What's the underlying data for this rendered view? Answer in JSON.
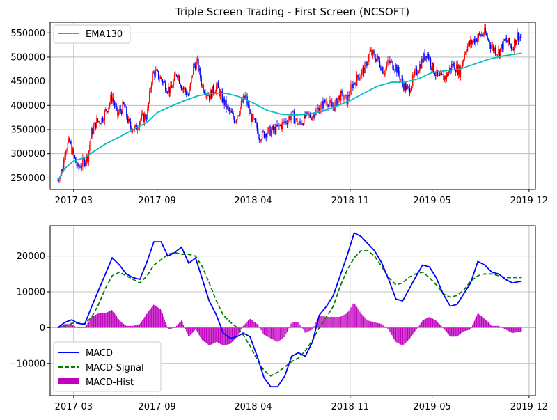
{
  "chart_data": [
    {
      "type": "line",
      "title": "Triple Screen Trading - First Screen (NCSOFT)",
      "xlabel": "",
      "ylabel": "",
      "x_tick_labels": [
        "2017-03",
        "2017-09",
        "2018-04",
        "2018-11",
        "2019-05",
        "2019-12"
      ],
      "y_tick_labels": [
        "250000",
        "300000",
        "350000",
        "400000",
        "450000",
        "500000",
        "550000"
      ],
      "xlim": [
        "2017-01-08",
        "2019-12-15"
      ],
      "ylim": [
        226000,
        572000
      ],
      "grid": true,
      "legend_position": "top-left",
      "candlestick_colors": {
        "up": "#ff0000",
        "down": "#0000ff"
      },
      "series": [
        {
          "name": "EMA130",
          "color": "#00bfbf",
          "points": [
            [
              "2017-01-25",
              245000
            ],
            [
              "2017-02-10",
              270000
            ],
            [
              "2017-03-01",
              285000
            ],
            [
              "2017-03-25",
              292000
            ],
            [
              "2017-04-15",
              305000
            ],
            [
              "2017-05-10",
              320000
            ],
            [
              "2017-06-10",
              335000
            ],
            [
              "2017-07-10",
              350000
            ],
            [
              "2017-08-10",
              365000
            ],
            [
              "2017-09-01",
              385000
            ],
            [
              "2017-10-01",
              398000
            ],
            [
              "2017-11-01",
              410000
            ],
            [
              "2017-12-01",
              420000
            ],
            [
              "2018-01-01",
              425000
            ],
            [
              "2018-02-01",
              425000
            ],
            [
              "2018-03-01",
              418000
            ],
            [
              "2018-04-01",
              405000
            ],
            [
              "2018-05-01",
              390000
            ],
            [
              "2018-06-01",
              382000
            ],
            [
              "2018-07-01",
              380000
            ],
            [
              "2018-08-01",
              382000
            ],
            [
              "2018-09-01",
              388000
            ],
            [
              "2018-10-01",
              398000
            ],
            [
              "2018-11-01",
              410000
            ],
            [
              "2018-12-01",
              425000
            ],
            [
              "2019-01-01",
              440000
            ],
            [
              "2019-02-01",
              448000
            ],
            [
              "2019-03-01",
              448000
            ],
            [
              "2019-04-01",
              455000
            ],
            [
              "2019-05-01",
              468000
            ],
            [
              "2019-06-01",
              472000
            ],
            [
              "2019-07-01",
              475000
            ],
            [
              "2019-08-01",
              485000
            ],
            [
              "2019-09-01",
              495000
            ],
            [
              "2019-10-01",
              502000
            ],
            [
              "2019-11-15",
              508000
            ]
          ]
        }
      ],
      "price_path": [
        [
          "2017-01-25",
          245000
        ],
        [
          "2017-02-05",
          270000
        ],
        [
          "2017-02-10",
          310000
        ],
        [
          "2017-02-20",
          325000
        ],
        [
          "2017-03-01",
          295000
        ],
        [
          "2017-03-10",
          270000
        ],
        [
          "2017-03-25",
          285000
        ],
        [
          "2017-04-01",
          295000
        ],
        [
          "2017-04-10",
          345000
        ],
        [
          "2017-04-20",
          365000
        ],
        [
          "2017-05-01",
          370000
        ],
        [
          "2017-05-15",
          395000
        ],
        [
          "2017-05-25",
          420000
        ],
        [
          "2017-06-05",
          380000
        ],
        [
          "2017-06-20",
          400000
        ],
        [
          "2017-07-01",
          360000
        ],
        [
          "2017-07-15",
          350000
        ],
        [
          "2017-07-25",
          370000
        ],
        [
          "2017-08-10",
          380000
        ],
        [
          "2017-08-20",
          455000
        ],
        [
          "2017-08-25",
          470000
        ],
        [
          "2017-09-10",
          455000
        ],
        [
          "2017-09-20",
          440000
        ],
        [
          "2017-10-01",
          430000
        ],
        [
          "2017-10-15",
          470000
        ],
        [
          "2017-10-25",
          440000
        ],
        [
          "2017-11-10",
          420000
        ],
        [
          "2017-11-20",
          480000
        ],
        [
          "2017-11-28",
          490000
        ],
        [
          "2017-12-10",
          440000
        ],
        [
          "2017-12-25",
          420000
        ],
        [
          "2018-01-10",
          440000
        ],
        [
          "2018-01-25",
          410000
        ],
        [
          "2018-02-05",
          390000
        ],
        [
          "2018-02-20",
          370000
        ],
        [
          "2018-03-05",
          400000
        ],
        [
          "2018-03-15",
          420000
        ],
        [
          "2018-03-25",
          380000
        ],
        [
          "2018-04-05",
          360000
        ],
        [
          "2018-04-15",
          335000
        ],
        [
          "2018-05-01",
          345000
        ],
        [
          "2018-05-20",
          350000
        ],
        [
          "2018-06-10",
          365000
        ],
        [
          "2018-06-25",
          380000
        ],
        [
          "2018-07-10",
          360000
        ],
        [
          "2018-07-25",
          375000
        ],
        [
          "2018-08-10",
          380000
        ],
        [
          "2018-08-25",
          395000
        ],
        [
          "2018-09-10",
          410000
        ],
        [
          "2018-09-25",
          395000
        ],
        [
          "2018-10-10",
          420000
        ],
        [
          "2018-10-25",
          410000
        ],
        [
          "2018-11-05",
          440000
        ],
        [
          "2018-11-20",
          460000
        ],
        [
          "2018-12-05",
          480000
        ],
        [
          "2018-12-15",
          510000
        ],
        [
          "2019-01-01",
          495000
        ],
        [
          "2019-01-15",
          470000
        ],
        [
          "2019-01-25",
          490000
        ],
        [
          "2019-02-10",
          480000
        ],
        [
          "2019-02-25",
          445000
        ],
        [
          "2019-03-10",
          430000
        ],
        [
          "2019-03-25",
          465000
        ],
        [
          "2019-04-10",
          495000
        ],
        [
          "2019-04-20",
          510000
        ],
        [
          "2019-05-01",
          480000
        ],
        [
          "2019-05-15",
          455000
        ],
        [
          "2019-06-01",
          460000
        ],
        [
          "2019-06-15",
          485000
        ],
        [
          "2019-07-01",
          470000
        ],
        [
          "2019-07-15",
          520000
        ],
        [
          "2019-08-01",
          535000
        ],
        [
          "2019-08-15",
          545000
        ],
        [
          "2019-08-25",
          550000
        ],
        [
          "2019-09-10",
          520000
        ],
        [
          "2019-09-25",
          510000
        ],
        [
          "2019-10-10",
          535000
        ],
        [
          "2019-10-25",
          520000
        ],
        [
          "2019-11-05",
          545000
        ],
        [
          "2019-11-15",
          540000
        ]
      ]
    },
    {
      "type": "line",
      "title": "",
      "xlabel": "",
      "ylabel": "",
      "x_tick_labels": [
        "2017-03",
        "2017-09",
        "2018-04",
        "2018-11",
        "2019-05",
        "2019-12"
      ],
      "y_tick_labels": [
        "−10000",
        "0",
        "10000",
        "20000"
      ],
      "xlim": [
        "2017-01-08",
        "2019-12-15"
      ],
      "ylim": [
        -19000,
        28500
      ],
      "grid": true,
      "legend_position": "bottom-left",
      "series": [
        {
          "name": "MACD",
          "color": "#0000ff",
          "style": "solid",
          "points": [
            [
              "2017-01-25",
              0
            ],
            [
              "2017-02-10",
              1500
            ],
            [
              "2017-02-25",
              2200
            ],
            [
              "2017-03-10",
              1200
            ],
            [
              "2017-03-25",
              900
            ],
            [
              "2017-04-10",
              6000
            ],
            [
              "2017-04-25",
              10500
            ],
            [
              "2017-05-10",
              15000
            ],
            [
              "2017-05-25",
              19500
            ],
            [
              "2017-06-10",
              17500
            ],
            [
              "2017-06-25",
              15000
            ],
            [
              "2017-07-10",
              14000
            ],
            [
              "2017-07-25",
              13500
            ],
            [
              "2017-08-10",
              18500
            ],
            [
              "2017-08-25",
              24000
            ],
            [
              "2017-09-10",
              24000
            ],
            [
              "2017-09-25",
              20000
            ],
            [
              "2017-10-10",
              21000
            ],
            [
              "2017-10-25",
              22500
            ],
            [
              "2017-11-10",
              18000
            ],
            [
              "2017-11-25",
              19500
            ],
            [
              "2017-12-10",
              13500
            ],
            [
              "2017-12-25",
              7500
            ],
            [
              "2018-01-10",
              3500
            ],
            [
              "2018-01-25",
              -1500
            ],
            [
              "2018-02-10",
              -3000
            ],
            [
              "2018-02-25",
              -2500
            ],
            [
              "2018-03-10",
              -1500
            ],
            [
              "2018-03-25",
              -2500
            ],
            [
              "2018-04-10",
              -8000
            ],
            [
              "2018-04-25",
              -14000
            ],
            [
              "2018-05-10",
              -16500
            ],
            [
              "2018-05-25",
              -16500
            ],
            [
              "2018-06-10",
              -13500
            ],
            [
              "2018-06-25",
              -8000
            ],
            [
              "2018-07-10",
              -7000
            ],
            [
              "2018-07-25",
              -8000
            ],
            [
              "2018-08-10",
              -4000
            ],
            [
              "2018-08-25",
              3500
            ],
            [
              "2018-09-10",
              6000
            ],
            [
              "2018-09-25",
              9000
            ],
            [
              "2018-10-10",
              14500
            ],
            [
              "2018-10-25",
              20000
            ],
            [
              "2018-11-10",
              26500
            ],
            [
              "2018-11-25",
              25500
            ],
            [
              "2018-12-10",
              23500
            ],
            [
              "2018-12-25",
              21500
            ],
            [
              "2019-01-10",
              18000
            ],
            [
              "2019-01-25",
              13500
            ],
            [
              "2019-02-10",
              8000
            ],
            [
              "2019-02-25",
              7500
            ],
            [
              "2019-03-10",
              10500
            ],
            [
              "2019-03-25",
              14000
            ],
            [
              "2019-04-10",
              17500
            ],
            [
              "2019-04-25",
              17000
            ],
            [
              "2019-05-10",
              14000
            ],
            [
              "2019-05-25",
              9500
            ],
            [
              "2019-06-10",
              6000
            ],
            [
              "2019-06-25",
              6500
            ],
            [
              "2019-07-10",
              9500
            ],
            [
              "2019-07-25",
              12500
            ],
            [
              "2019-08-10",
              18500
            ],
            [
              "2019-08-25",
              17500
            ],
            [
              "2019-09-10",
              15500
            ],
            [
              "2019-09-25",
              15000
            ],
            [
              "2019-10-10",
              13500
            ],
            [
              "2019-10-25",
              12500
            ],
            [
              "2019-11-15",
              13000
            ]
          ]
        },
        {
          "name": "MACD-Signal",
          "color": "#008000",
          "style": "dashed",
          "points": [
            [
              "2017-01-25",
              0
            ],
            [
              "2017-02-10",
              500
            ],
            [
              "2017-02-25",
              1200
            ],
            [
              "2017-03-10",
              1300
            ],
            [
              "2017-03-25",
              1000
            ],
            [
              "2017-04-10",
              3000
            ],
            [
              "2017-04-25",
              6500
            ],
            [
              "2017-05-10",
              11000
            ],
            [
              "2017-05-25",
              14500
            ],
            [
              "2017-06-10",
              15500
            ],
            [
              "2017-06-25",
              14500
            ],
            [
              "2017-07-10",
              13500
            ],
            [
              "2017-07-25",
              12500
            ],
            [
              "2017-08-10",
              14500
            ],
            [
              "2017-08-25",
              17500
            ],
            [
              "2017-09-10",
              19000
            ],
            [
              "2017-09-25",
              20500
            ],
            [
              "2017-10-10",
              21000
            ],
            [
              "2017-10-25",
              20500
            ],
            [
              "2017-11-10",
              20500
            ],
            [
              "2017-11-25",
              20000
            ],
            [
              "2017-12-10",
              17000
            ],
            [
              "2017-12-25",
              12500
            ],
            [
              "2018-01-10",
              7500
            ],
            [
              "2018-01-25",
              3500
            ],
            [
              "2018-02-10",
              1500
            ],
            [
              "2018-02-25",
              0
            ],
            [
              "2018-03-10",
              -2000
            ],
            [
              "2018-03-25",
              -5000
            ],
            [
              "2018-04-10",
              -9000
            ],
            [
              "2018-04-25",
              -12000
            ],
            [
              "2018-05-10",
              -13500
            ],
            [
              "2018-05-25",
              -12500
            ],
            [
              "2018-06-10",
              -11000
            ],
            [
              "2018-06-25",
              -9500
            ],
            [
              "2018-07-10",
              -8500
            ],
            [
              "2018-07-25",
              -6500
            ],
            [
              "2018-08-10",
              -3500
            ],
            [
              "2018-08-25",
              0
            ],
            [
              "2018-09-10",
              3000
            ],
            [
              "2018-09-25",
              6000
            ],
            [
              "2018-10-10",
              11500
            ],
            [
              "2018-10-25",
              16000
            ],
            [
              "2018-11-10",
              19500
            ],
            [
              "2018-11-25",
              21500
            ],
            [
              "2018-12-10",
              21500
            ],
            [
              "2018-12-25",
              20000
            ],
            [
              "2019-01-10",
              17000
            ],
            [
              "2019-01-25",
              14000
            ],
            [
              "2019-02-10",
              12000
            ],
            [
              "2019-02-25",
              12500
            ],
            [
              "2019-03-10",
              14000
            ],
            [
              "2019-03-25",
              15000
            ],
            [
              "2019-04-10",
              15500
            ],
            [
              "2019-04-25",
              14000
            ],
            [
              "2019-05-10",
              12000
            ],
            [
              "2019-05-25",
              9500
            ],
            [
              "2019-06-10",
              8500
            ],
            [
              "2019-06-25",
              9000
            ],
            [
              "2019-07-10",
              10500
            ],
            [
              "2019-07-25",
              13000
            ],
            [
              "2019-08-10",
              14500
            ],
            [
              "2019-08-25",
              15000
            ],
            [
              "2019-09-10",
              15000
            ],
            [
              "2019-09-25",
              14500
            ],
            [
              "2019-10-10",
              14000
            ],
            [
              "2019-11-15",
              14000
            ]
          ]
        },
        {
          "name": "MACD-Hist",
          "color": "#bf00bf",
          "type": "bar"
        }
      ]
    }
  ]
}
